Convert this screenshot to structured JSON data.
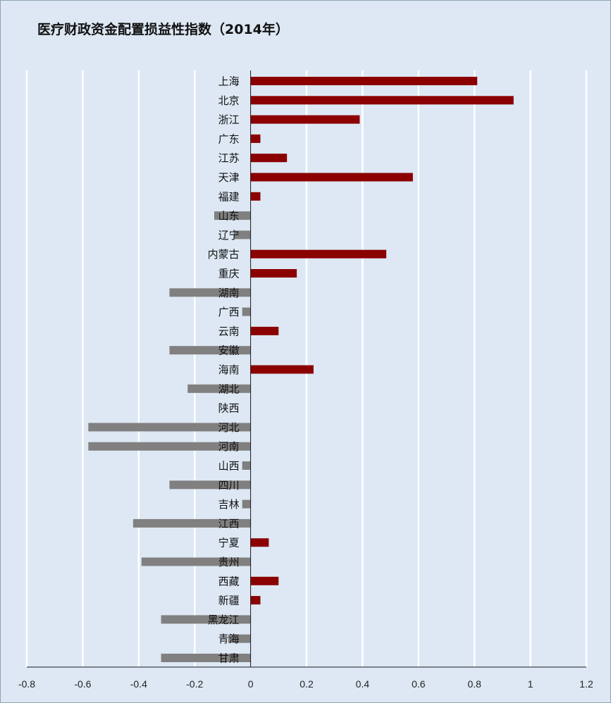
{
  "chart_data": {
    "type": "bar",
    "orientation": "horizontal",
    "title": "医疗财政资金配置损益性指数（2014年）",
    "xlabel": "",
    "ylabel": "",
    "xlim": [
      -0.8,
      1.2
    ],
    "x_ticks": [
      "-0.8",
      "-0.6",
      "-0.4",
      "-0.2",
      "0",
      "0.2",
      "0.4",
      "0.6",
      "0.8",
      "1",
      "1.2"
    ],
    "grid": "vertical",
    "legend": "none",
    "colors": {
      "positive": "#8b0000",
      "negative": "#808080",
      "background": "#dde8f4",
      "gridline": "#ffffff"
    },
    "categories": [
      "上海",
      "北京",
      "浙江",
      "广东",
      "江苏",
      "天津",
      "福建",
      "山东",
      "辽宁",
      "内蒙古",
      "重庆",
      "湖南",
      "广西",
      "云南",
      "安徽",
      "海南",
      "湖北",
      "陕西",
      "河北",
      "河南",
      "山西",
      "四川",
      "吉林",
      "江西",
      "宁夏",
      "贵州",
      "西藏",
      "新疆",
      "黑龙江",
      "青海",
      "甘肃"
    ],
    "values": [
      0.81,
      0.94,
      0.39,
      0.035,
      0.13,
      0.58,
      0.035,
      -0.13,
      -0.06,
      0.485,
      0.165,
      -0.29,
      -0.03,
      0.1,
      -0.29,
      0.225,
      -0.225,
      0,
      -0.58,
      -0.58,
      -0.03,
      -0.29,
      -0.03,
      -0.42,
      0.065,
      -0.39,
      0.1,
      0.035,
      -0.32,
      -0.08,
      -0.32
    ]
  }
}
